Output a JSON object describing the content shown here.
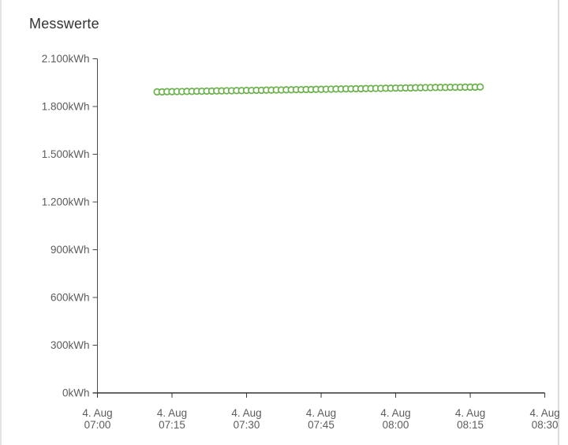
{
  "page": {
    "background": "#ffffff",
    "card_border_left_color": "#e4e4e4",
    "card_border_right_color": "#dcdcdc"
  },
  "chart_data": {
    "type": "scatter",
    "title": "Messwerte",
    "grid": false,
    "legend": false,
    "colors": {
      "title": "#333333",
      "axis_label": "#5c5c5c",
      "x_axis_line": "#333333",
      "y_axis_line": "#4a4a4a",
      "marker_stroke": "#6bb24c",
      "marker_fill": "#ffffff"
    },
    "y_axis": {
      "unit": "kWh",
      "range": [
        0,
        2100
      ],
      "tick_step": 300,
      "tick_labels": [
        "0kWh",
        "300kWh",
        "600kWh",
        "900kWh",
        "1.200kWh",
        "1.500kWh",
        "1.800kWh",
        "2.100kWh"
      ]
    },
    "x_axis": {
      "type": "datetime",
      "date_label": "4. Aug",
      "range": [
        "07:00",
        "08:30"
      ],
      "tick_times": [
        "07:00",
        "07:15",
        "07:30",
        "07:45",
        "08:00",
        "08:15",
        "08:30"
      ],
      "last_label_clipped": true
    },
    "series": [
      {
        "name": "Messwerte",
        "marker": "hollow-circle",
        "unit": "kWh",
        "times": [
          "07:12",
          "07:13",
          "07:14",
          "07:15",
          "07:16",
          "07:17",
          "07:18",
          "07:19",
          "07:20",
          "07:21",
          "07:22",
          "07:23",
          "07:24",
          "07:25",
          "07:26",
          "07:27",
          "07:28",
          "07:29",
          "07:30",
          "07:31",
          "07:32",
          "07:33",
          "07:34",
          "07:35",
          "07:36",
          "07:37",
          "07:38",
          "07:39",
          "07:40",
          "07:41",
          "07:42",
          "07:43",
          "07:44",
          "07:45",
          "07:46",
          "07:47",
          "07:48",
          "07:49",
          "07:50",
          "07:51",
          "07:52",
          "07:53",
          "07:54",
          "07:55",
          "07:56",
          "07:57",
          "07:58",
          "07:59",
          "08:00",
          "08:01",
          "08:02",
          "08:03",
          "08:04",
          "08:05",
          "08:06",
          "08:07",
          "08:08",
          "08:09",
          "08:10",
          "08:11",
          "08:12",
          "08:13",
          "08:14",
          "08:15",
          "08:16",
          "08:17"
        ],
        "values": [
          1892,
          1892,
          1893,
          1893,
          1894,
          1894,
          1895,
          1895,
          1896,
          1896,
          1897,
          1897,
          1898,
          1898,
          1899,
          1899,
          1900,
          1900,
          1901,
          1901,
          1902,
          1902,
          1903,
          1903,
          1904,
          1904,
          1905,
          1905,
          1906,
          1906,
          1907,
          1907,
          1908,
          1908,
          1909,
          1909,
          1910,
          1910,
          1911,
          1911,
          1912,
          1912,
          1913,
          1913,
          1914,
          1914,
          1915,
          1915,
          1916,
          1916,
          1917,
          1917,
          1918,
          1918,
          1919,
          1919,
          1920,
          1920,
          1920,
          1921,
          1921,
          1921,
          1922,
          1922,
          1922,
          1923
        ]
      }
    ]
  }
}
